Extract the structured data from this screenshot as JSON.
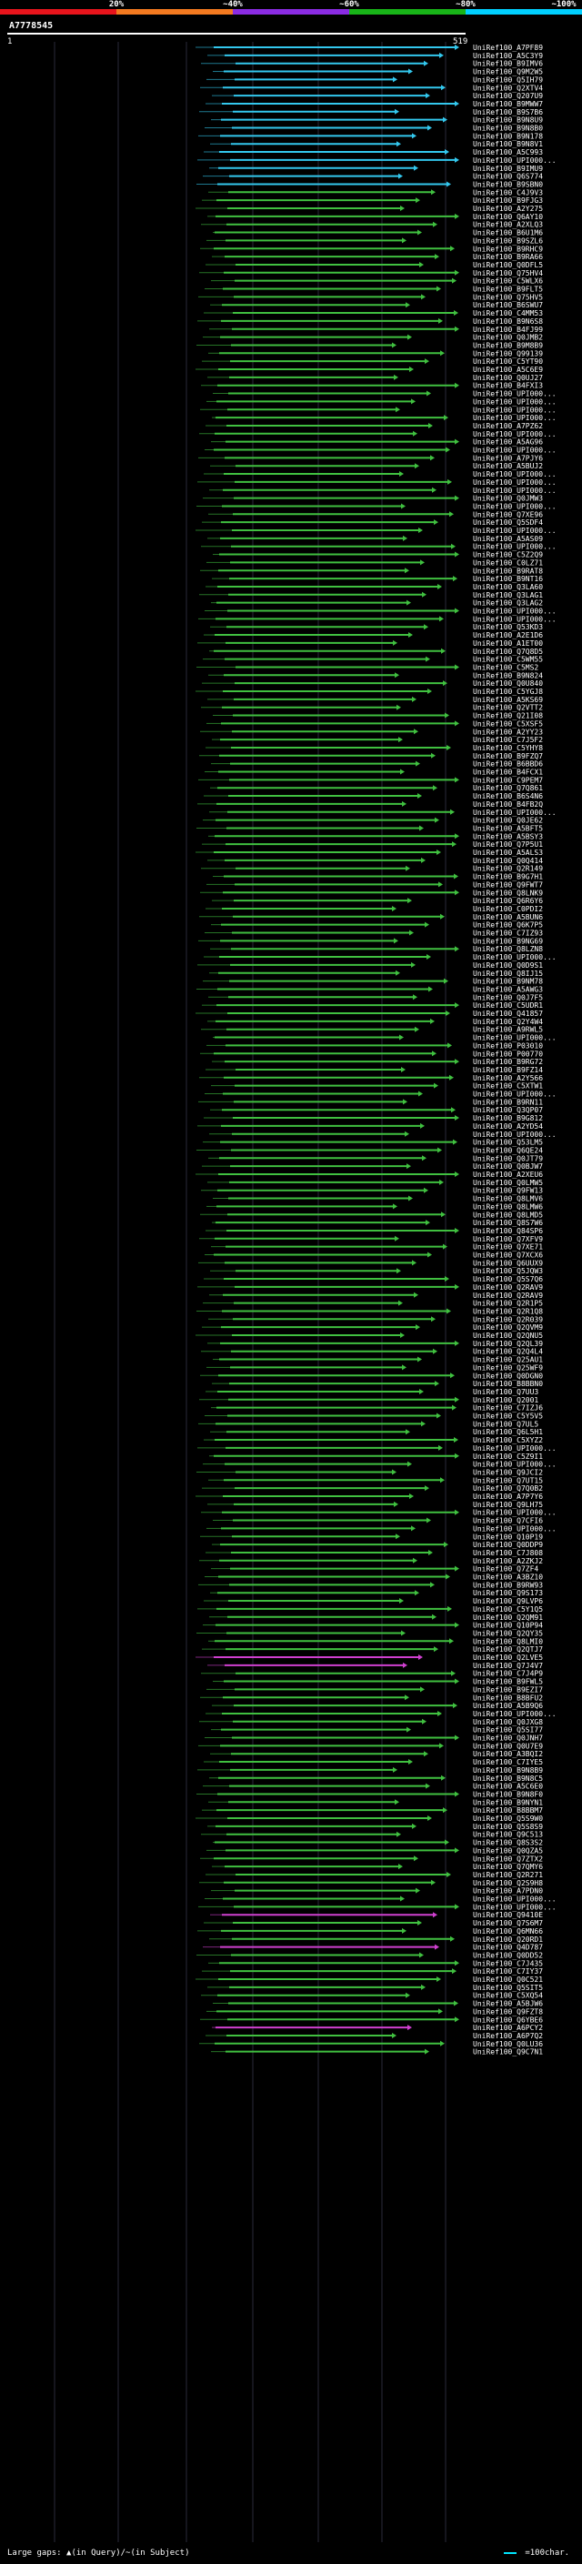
{
  "identity_scale": {
    "labels": [
      "20%",
      "~40%",
      "~60%",
      "~80%",
      "~100%"
    ],
    "colors": [
      "#e8141c",
      "#f47a20",
      "#8a2be2",
      "#18b418",
      "#00d0ff"
    ]
  },
  "query": {
    "id": "A7778545",
    "start": "1",
    "end": "519"
  },
  "footer": {
    "gaps_text": "Large gaps: ▲(in Query)/~(in Subject)",
    "scale_text": "=100char."
  },
  "chart_data": {
    "type": "alignment",
    "query_length": 519,
    "hit_names": [
      "UniRef100_A7PF89",
      "UniRef100_A5C3Y9",
      "UniRef100_B9IMV6",
      "UniRef100_Q9M2W5",
      "UniRef100_Q5IH79",
      "UniRef100_Q2XTV4",
      "UniRef100_Q207U9",
      "UniRef100_B9MWW7",
      "UniRef100_B9S7B6",
      "UniRef100_B9N8U9",
      "UniRef100_B9N8B0",
      "UniRef100_B9N178",
      "UniRef100_B9N8V1",
      "UniRef100_A5C993",
      "UniRef100_UPI000...",
      "UniRef100_B9IMU9",
      "UniRef100_Q6S774",
      "UniRef100_B9SBN0",
      "UniRef100_C4J9V3",
      "UniRef100_B9FJG3",
      "UniRef100_A2Y275",
      "UniRef100_Q6AY10",
      "UniRef100_A2XLQ3",
      "UniRef100_B6U1M6",
      "UniRef100_B9SZL6",
      "UniRef100_B9RHC9",
      "UniRef100_B9RA66",
      "UniRef100_Q0DFL5",
      "UniRef100_Q75HV4",
      "UniRef100_C5WLX6",
      "UniRef100_B9FLT5",
      "UniRef100_Q75HV5",
      "UniRef100_B6SWU7",
      "UniRef100_C4MM53",
      "UniRef100_B9N6S8",
      "UniRef100_B4FJ99",
      "UniRef100_Q0JMB2",
      "UniRef100_B9M8B9",
      "UniRef100_Q99139",
      "UniRef100_C5YT90",
      "UniRef100_A5C6E9",
      "UniRef100_Q0UJ27",
      "UniRef100_B4FXI3",
      "UniRef100_UPI000...",
      "UniRef100_UPI000...",
      "UniRef100_UPI000...",
      "UniRef100_UPI000...",
      "UniRef100_A7PZ62",
      "UniRef100_UPI000...",
      "UniRef100_A5AG96",
      "UniRef100_UPI000...",
      "UniRef100_A7PJY6",
      "UniRef100_A5BUJ2",
      "UniRef100_UPI000...",
      "UniRef100_UPI000...",
      "UniRef100_UPI000...",
      "UniRef100_Q0JMW3",
      "UniRef100_UPI000...",
      "UniRef100_Q7XE96",
      "UniRef100_Q5SDF4",
      "UniRef100_UPI000...",
      "UniRef100_A5AS09",
      "UniRef100_UPI000...",
      "UniRef100_C5Z2Q9",
      "UniRef100_C0LZ71",
      "UniRef100_B9RAT8",
      "UniRef100_B9NT16",
      "UniRef100_Q3LA60",
      "UniRef100_Q3LAG1",
      "UniRef100_Q3LAG2",
      "UniRef100_UPI000...",
      "UniRef100_UPI000...",
      "UniRef100_Q53KD3",
      "UniRef100_A2E1D6",
      "UniRef100_A1ET00",
      "UniRef100_Q7Q8D5",
      "UniRef100_C5WM55",
      "UniRef100_C5MS2",
      "UniRef100_B9N824",
      "UniRef100_Q0U840",
      "UniRef100_C5YGJ8",
      "UniRef100_A5KS69",
      "UniRef100_Q2VTT2",
      "UniRef100_Q21I08",
      "UniRef100_C5XSF5",
      "UniRef100_A2YY23",
      "UniRef100_C7J5F2",
      "UniRef100_C5YHY8",
      "UniRef100_B9FZQ7",
      "UniRef100_B6BBD6",
      "UniRef100_B4FCX1",
      "UniRef100_C9PEM7",
      "UniRef100_Q7Q861",
      "UniRef100_B6S4N6",
      "UniRef100_B4FB2Q",
      "UniRef100_UPI000...",
      "UniRef100_Q0JE62",
      "UniRef100_A5BFT5",
      "UniRef100_A5BSY3",
      "UniRef100_Q7P5U1",
      "UniRef100_A5ALS3",
      "UniRef100_Q0Q414",
      "UniRef100_Q2R149",
      "UniRef100_B9G7H1",
      "UniRef100_Q9FWT7",
      "UniRef100_Q8LNK9",
      "UniRef100_Q6R6Y6",
      "UniRef100_C0PDI2",
      "UniRef100_A5BUN6",
      "UniRef100_Q6K7P5",
      "UniRef100_C7IZ93",
      "UniRef100_B9NG69",
      "UniRef100_Q8LZN8",
      "UniRef100_UPI000...",
      "UniRef100_Q0D9S1",
      "UniRef100_Q8IJ15",
      "UniRef100_B9NM78",
      "UniRef100_A5AWG3",
      "UniRef100_Q0J7F5",
      "UniRef100_C5UDR1",
      "UniRef100_Q41857",
      "UniRef100_Q2Y4W4",
      "UniRef100_A9RWL5",
      "UniRef100_UPI000...",
      "UniRef100_P03010",
      "UniRef100_P00770",
      "UniRef100_B9RG72",
      "UniRef100_B9FZ14",
      "UniRef100_A2Y566",
      "UniRef100_C5XTW1",
      "UniRef100_UPI000...",
      "UniRef100_B9RN11",
      "UniRef100_Q3QP07",
      "UniRef100_B9G812",
      "UniRef100_A2YD54",
      "UniRef100_UPI000...",
      "UniRef100_Q53LM5",
      "UniRef100_Q6QE24",
      "UniRef100_Q0JT79",
      "UniRef100_Q0BJW7",
      "UniRef100_A2XEU6",
      "UniRef100_Q0LMW5",
      "UniRef100_Q9FW13",
      "UniRef100_Q8LMV6",
      "UniRef100_Q8LMW6",
      "UniRef100_Q8LMD5",
      "UniRef100_Q8S7W6",
      "UniRef100_Q84SP6",
      "UniRef100_Q7XFV9",
      "UniRef100_Q7XE71",
      "UniRef100_Q7XCX6",
      "UniRef100_Q6UUX9",
      "UniRef100_Q5JQW3",
      "UniRef100_Q5S7Q6",
      "UniRef100_Q2RAV9",
      "UniRef100_Q2RAV9",
      "UniRef100_Q2R1P5",
      "UniRef100_Q2R1Q8",
      "UniRef100_Q2R039",
      "UniRef100_Q2QVM9",
      "UniRef100_Q2QNU5",
      "UniRef100_Q2QL39",
      "UniRef100_Q2Q4L4",
      "UniRef100_Q25AU1",
      "UniRef100_Q25WF9",
      "UniRef100_Q0DGN0",
      "UniRef100_B8BBN0",
      "UniRef100_Q7UU3",
      "UniRef100_Q2001",
      "UniRef100_C7IZJ6",
      "UniRef100_C5Y5V5",
      "UniRef100_Q7UL5",
      "UniRef100_Q6L5H1",
      "UniRef100_C5XYZ2",
      "UniRef100_UPI000...",
      "UniRef100_C5Z9I1",
      "UniRef100_UPI000...",
      "UniRef100_Q9JCI2",
      "UniRef100_Q7UT15",
      "UniRef100_Q7Q0B2",
      "UniRef100_A7P7Y6",
      "UniRef100_Q9LH75",
      "UniRef100_UPI000...",
      "UniRef100_Q7CFI6",
      "UniRef100_UPI000...",
      "UniRef100_Q10P19",
      "UniRef100_Q0DDP9",
      "UniRef100_C7J808",
      "UniRef100_A2ZKJ2",
      "UniRef100_Q7ZF4",
      "UniRef100_A3BZ10",
      "UniRef100_B9RW93",
      "UniRef100_Q9S173",
      "UniRef100_Q9LVP6",
      "UniRef100_C5Y1Q5",
      "UniRef100_Q2QM91",
      "UniRef100_Q10P94",
      "UniRef100_Q2QY35",
      "UniRef100_Q8LMI0",
      "UniRef100_Q2QTJ7",
      "UniRef100_Q2LVE5",
      "UniRef100_Q7J4V7",
      "UniRef100_C7J4P9",
      "UniRef100_B9FWL5",
      "UniRef100_B9EZI7",
      "UniRef100_B8BFU2",
      "UniRef100_A5B9Q6",
      "UniRef100_UPI000...",
      "UniRef100_Q0JXG8",
      "UniRef100_Q5SI77",
      "UniRef100_Q0JNH7",
      "UniRef100_Q0U7E9",
      "UniRef100_A3BQI2",
      "UniRef100_C7IYE5",
      "UniRef100_B9N8B9",
      "UniRef100_B9N8C5",
      "UniRef100_A5C6E0",
      "UniRef100_B9N8F0",
      "UniRef100_B9NYN1",
      "UniRef100_B8BBM7",
      "UniRef100_Q5S9W0",
      "UniRef100_Q5S8S9",
      "UniRef100_Q9C513",
      "UniRef100_Q8S3S2",
      "UniRef100_Q0QZA5",
      "UniRef100_Q7ZTX2",
      "UniRef100_Q7QMY6",
      "UniRef100_Q2R271",
      "UniRef100_Q2S9H8",
      "UniRef100_A7PDN0",
      "UniRef100_UPI000...",
      "UniRef100_UPI000...",
      "UniRef100_Q9410E",
      "UniRef100_Q7S6M7",
      "UniRef100_Q6MN66",
      "UniRef100_Q20RD1",
      "UniRef100_Q4D787",
      "UniRef100_Q0DD52",
      "UniRef100_C7J435",
      "UniRef100_C7IY37",
      "UniRef100_Q0C521",
      "UniRef100_Q5SIT5",
      "UniRef100_C5XQ54",
      "UniRef100_A5BJW6",
      "UniRef100_Q9FZT8",
      "UniRef100_Q6YBE6",
      "UniRef100_A6PCY2",
      "UniRef100_A6P7Q2",
      "UniRef100_Q0LU36",
      "UniRef100_Q9C7N1"
    ]
  }
}
